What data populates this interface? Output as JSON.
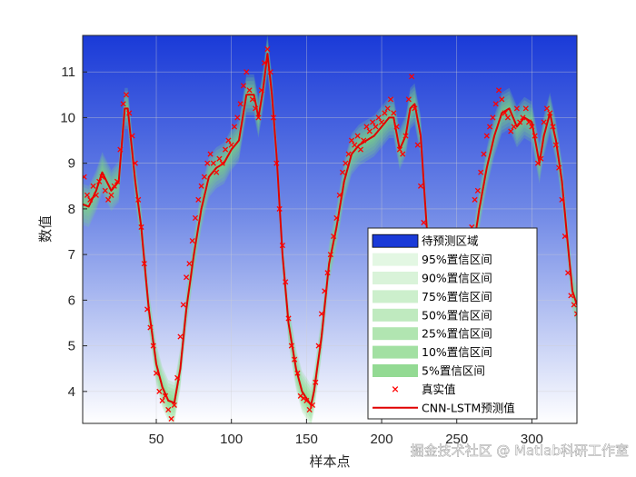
{
  "chart_data": {
    "type": "line",
    "xlabel": "样本点",
    "ylabel": "数值",
    "xlim": [
      1,
      330
    ],
    "ylim": [
      3.3,
      11.8
    ],
    "x_ticks": [
      50,
      100,
      150,
      200,
      250,
      300
    ],
    "y_ticks": [
      4,
      5,
      6,
      7,
      8,
      9,
      10,
      11
    ],
    "grid": true,
    "legend_position": "bottom-right",
    "colors": {
      "region_top": "#1a3ad8",
      "region_bottom": "#ffffff",
      "band": "#7edc7e",
      "true_marker": "#ff0000",
      "prediction_line": "#e00000"
    },
    "band_levels": [
      {
        "label": "95%置信区间",
        "half_width": 0.45
      },
      {
        "label": "90%置信区间",
        "half_width": 0.38
      },
      {
        "label": "75%置信区间",
        "half_width": 0.3
      },
      {
        "label": "50%置信区间",
        "half_width": 0.22
      },
      {
        "label": "25%置信区间",
        "half_width": 0.15
      },
      {
        "label": "10%置信区间",
        "half_width": 0.09
      },
      {
        "label": "5%置信区间",
        "half_width": 0.05
      }
    ],
    "prediction_keypoints": [
      [
        1,
        8.1
      ],
      [
        5,
        8.05
      ],
      [
        10,
        8.4
      ],
      [
        14,
        8.8
      ],
      [
        20,
        8.4
      ],
      [
        25,
        8.6
      ],
      [
        29,
        10.2
      ],
      [
        31,
        10.2
      ],
      [
        36,
        8.6
      ],
      [
        40,
        7.6
      ],
      [
        45,
        5.8
      ],
      [
        50,
        4.6
      ],
      [
        54,
        4.1
      ],
      [
        58,
        3.8
      ],
      [
        62,
        3.75
      ],
      [
        66,
        4.5
      ],
      [
        70,
        5.8
      ],
      [
        75,
        7.0
      ],
      [
        80,
        8.0
      ],
      [
        85,
        8.7
      ],
      [
        90,
        8.9
      ],
      [
        95,
        9.0
      ],
      [
        100,
        9.3
      ],
      [
        105,
        9.5
      ],
      [
        110,
        10.5
      ],
      [
        115,
        10.5
      ],
      [
        118,
        10.0
      ],
      [
        121,
        10.6
      ],
      [
        124,
        11.4
      ],
      [
        127,
        10.5
      ],
      [
        130,
        9.2
      ],
      [
        134,
        7.0
      ],
      [
        138,
        5.5
      ],
      [
        143,
        4.5
      ],
      [
        147,
        4.0
      ],
      [
        151,
        3.8
      ],
      [
        153,
        3.7
      ],
      [
        155,
        4.0
      ],
      [
        160,
        5.2
      ],
      [
        165,
        6.8
      ],
      [
        170,
        7.6
      ],
      [
        175,
        8.6
      ],
      [
        180,
        9.2
      ],
      [
        185,
        9.4
      ],
      [
        190,
        9.5
      ],
      [
        195,
        9.6
      ],
      [
        200,
        9.8
      ],
      [
        205,
        10.0
      ],
      [
        208,
        10.0
      ],
      [
        212,
        9.3
      ],
      [
        216,
        9.6
      ],
      [
        219,
        10.2
      ],
      [
        222,
        10.3
      ],
      [
        226,
        9.6
      ],
      [
        230,
        7.6
      ],
      [
        235,
        6.3
      ],
      [
        240,
        5.5
      ],
      [
        245,
        5.4
      ],
      [
        250,
        5.5
      ],
      [
        255,
        6.0
      ],
      [
        260,
        6.9
      ],
      [
        265,
        8.0
      ],
      [
        270,
        8.9
      ],
      [
        275,
        9.6
      ],
      [
        280,
        10.1
      ],
      [
        285,
        10.2
      ],
      [
        290,
        9.8
      ],
      [
        295,
        10.0
      ],
      [
        300,
        9.9
      ],
      [
        305,
        9.0
      ],
      [
        308,
        9.6
      ],
      [
        312,
        10.1
      ],
      [
        316,
        9.5
      ],
      [
        320,
        8.6
      ],
      [
        324,
        7.2
      ],
      [
        327,
        6.2
      ],
      [
        330,
        5.9
      ]
    ],
    "true_value_points": [
      [
        2,
        8.7
      ],
      [
        4,
        8.3
      ],
      [
        6,
        8.2
      ],
      [
        8,
        8.5
      ],
      [
        10,
        8.3
      ],
      [
        12,
        8.6
      ],
      [
        14,
        8.7
      ],
      [
        16,
        8.4
      ],
      [
        18,
        8.2
      ],
      [
        20,
        8.3
      ],
      [
        22,
        8.5
      ],
      [
        24,
        8.6
      ],
      [
        26,
        9.3
      ],
      [
        28,
        10.3
      ],
      [
        30,
        10.5
      ],
      [
        32,
        10.1
      ],
      [
        34,
        9.6
      ],
      [
        36,
        9.0
      ],
      [
        38,
        8.2
      ],
      [
        40,
        7.6
      ],
      [
        42,
        6.8
      ],
      [
        44,
        5.8
      ],
      [
        46,
        5.4
      ],
      [
        48,
        5.0
      ],
      [
        50,
        4.4
      ],
      [
        52,
        4.0
      ],
      [
        54,
        3.8
      ],
      [
        56,
        3.9
      ],
      [
        58,
        3.6
      ],
      [
        60,
        3.4
      ],
      [
        62,
        3.7
      ],
      [
        64,
        4.3
      ],
      [
        66,
        5.2
      ],
      [
        68,
        5.9
      ],
      [
        70,
        6.5
      ],
      [
        72,
        6.8
      ],
      [
        74,
        7.3
      ],
      [
        76,
        7.8
      ],
      [
        78,
        8.2
      ],
      [
        80,
        8.5
      ],
      [
        82,
        8.7
      ],
      [
        84,
        9.0
      ],
      [
        86,
        9.2
      ],
      [
        88,
        9.0
      ],
      [
        90,
        8.8
      ],
      [
        92,
        9.1
      ],
      [
        94,
        9.0
      ],
      [
        96,
        9.3
      ],
      [
        98,
        9.5
      ],
      [
        100,
        9.4
      ],
      [
        102,
        9.8
      ],
      [
        104,
        10.0
      ],
      [
        106,
        10.3
      ],
      [
        108,
        10.7
      ],
      [
        110,
        11.0
      ],
      [
        112,
        10.6
      ],
      [
        114,
        10.4
      ],
      [
        116,
        10.2
      ],
      [
        118,
        10.0
      ],
      [
        120,
        10.6
      ],
      [
        122,
        11.2
      ],
      [
        124,
        11.5
      ],
      [
        126,
        11.0
      ],
      [
        128,
        10.0
      ],
      [
        130,
        9.0
      ],
      [
        132,
        8.0
      ],
      [
        134,
        7.2
      ],
      [
        136,
        6.4
      ],
      [
        138,
        5.6
      ],
      [
        140,
        5.0
      ],
      [
        142,
        4.7
      ],
      [
        144,
        4.4
      ],
      [
        146,
        3.9
      ],
      [
        148,
        3.85
      ],
      [
        150,
        3.8
      ],
      [
        152,
        3.6
      ],
      [
        154,
        3.7
      ],
      [
        156,
        4.2
      ],
      [
        158,
        5.0
      ],
      [
        160,
        5.7
      ],
      [
        162,
        6.2
      ],
      [
        164,
        6.6
      ],
      [
        166,
        7.0
      ],
      [
        168,
        7.4
      ],
      [
        170,
        7.8
      ],
      [
        172,
        8.3
      ],
      [
        174,
        8.8
      ],
      [
        176,
        9.0
      ],
      [
        178,
        9.2
      ],
      [
        180,
        9.5
      ],
      [
        182,
        9.4
      ],
      [
        184,
        9.6
      ],
      [
        186,
        9.3
      ],
      [
        188,
        9.5
      ],
      [
        190,
        9.8
      ],
      [
        192,
        9.7
      ],
      [
        194,
        9.9
      ],
      [
        196,
        9.8
      ],
      [
        198,
        10.0
      ],
      [
        200,
        9.9
      ],
      [
        202,
        10.1
      ],
      [
        204,
        10.2
      ],
      [
        206,
        10.4
      ],
      [
        208,
        10.1
      ],
      [
        210,
        9.8
      ],
      [
        212,
        9.3
      ],
      [
        214,
        9.2
      ],
      [
        216,
        9.6
      ],
      [
        218,
        10.4
      ],
      [
        220,
        10.9
      ],
      [
        222,
        10.2
      ],
      [
        224,
        9.4
      ],
      [
        226,
        8.5
      ],
      [
        228,
        7.7
      ],
      [
        230,
        7.2
      ],
      [
        248,
        5.7
      ],
      [
        252,
        6.2
      ],
      [
        256,
        6.8
      ],
      [
        260,
        7.6
      ],
      [
        262,
        8.2
      ],
      [
        264,
        8.4
      ],
      [
        266,
        8.8
      ],
      [
        268,
        9.2
      ],
      [
        270,
        9.6
      ],
      [
        272,
        9.8
      ],
      [
        274,
        10.0
      ],
      [
        276,
        10.3
      ],
      [
        278,
        10.6
      ],
      [
        280,
        10.4
      ],
      [
        282,
        10.1
      ],
      [
        284,
        10.0
      ],
      [
        286,
        9.7
      ],
      [
        288,
        9.8
      ],
      [
        290,
        10.2
      ],
      [
        292,
        9.9
      ],
      [
        294,
        10.0
      ],
      [
        296,
        10.2
      ],
      [
        298,
        9.9
      ],
      [
        300,
        9.8
      ],
      [
        302,
        9.6
      ],
      [
        304,
        9.0
      ],
      [
        306,
        9.1
      ],
      [
        308,
        9.9
      ],
      [
        310,
        10.2
      ],
      [
        312,
        10.1
      ],
      [
        314,
        9.8
      ],
      [
        316,
        9.4
      ],
      [
        318,
        8.9
      ],
      [
        320,
        8.2
      ],
      [
        322,
        7.4
      ],
      [
        324,
        6.6
      ],
      [
        326,
        6.1
      ],
      [
        328,
        5.9
      ],
      [
        330,
        5.7
      ]
    ],
    "legend": [
      {
        "key": "region",
        "label": "待预测区域"
      },
      {
        "key": "band0",
        "label": "95%置信区间"
      },
      {
        "key": "band1",
        "label": "90%置信区间"
      },
      {
        "key": "band2",
        "label": "75%置信区间"
      },
      {
        "key": "band3",
        "label": "50%置信区间"
      },
      {
        "key": "band4",
        "label": "25%置信区间"
      },
      {
        "key": "band5",
        "label": "10%置信区间"
      },
      {
        "key": "band6",
        "label": "5%置信区间"
      },
      {
        "key": "true",
        "label": "真实值"
      },
      {
        "key": "pred",
        "label": "CNN-LSTM预测值"
      }
    ]
  },
  "watermark": "掘金技术社区 @ Matlab科研工作室"
}
